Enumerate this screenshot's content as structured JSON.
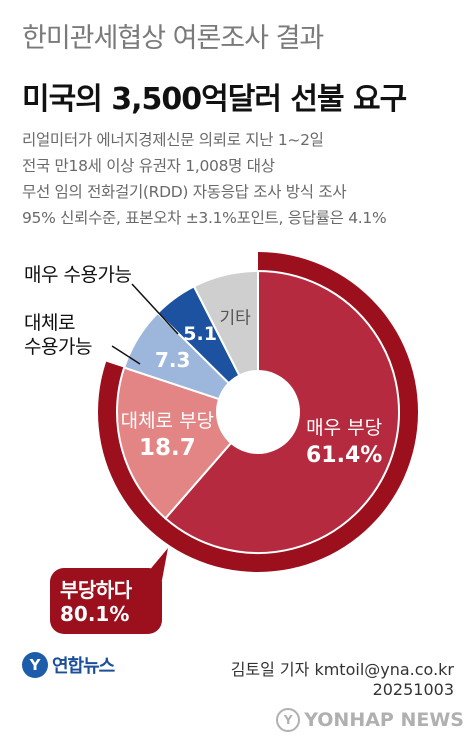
{
  "header": {
    "subtitle": "한미관세협상 여론조사 결과",
    "title": "미국의 3,500억달러 선불 요구"
  },
  "survey_info": [
    "리얼미터가 에너지경제신문 의뢰로 지난 1~2일",
    "전국 만18세 이상 유권자 1,008명 대상",
    "무선 임의 전화걸기(RDD) 자동응답 조사 방식 조사",
    "95% 신뢰수준, 표본오차 ±3.1%포인트, 응답률은 4.1%"
  ],
  "chart_data": {
    "type": "pie",
    "title": "",
    "donut": true,
    "start": "12 o'clock, clockwise",
    "slices": [
      {
        "label": "매우 부당",
        "value": 61.4,
        "display": "61.4%",
        "color": "#b52a3e"
      },
      {
        "label": "대체로 부당",
        "value": 18.7,
        "display": "18.7",
        "color": "#e48585"
      },
      {
        "label": "대체로 수용가능",
        "value": 7.3,
        "display": "7.3",
        "color": "#9db6dc"
      },
      {
        "label": "매우 수용가능",
        "value": 5.1,
        "display": "5.1",
        "color": "#1c52a0"
      },
      {
        "label": "기타",
        "value": 7.5,
        "display": "",
        "color": "#cfcfcf"
      }
    ],
    "group_total": {
      "label": "부당하다",
      "value": 80.1,
      "display": "80.1%",
      "color": "#9c0f1d"
    }
  },
  "labels": {
    "callout_very_acceptable": "매우 수용가능",
    "callout_mostly_acceptable_1": "대체로",
    "callout_mostly_acceptable_2": "수용가능",
    "other": "기타"
  },
  "footer": {
    "logo_mark": "Y",
    "logo_text": "연합뉴스",
    "credit": "김토일 기자 kmtoil@yna.co.kr",
    "date": "20251003",
    "watermark": "YONHAP NEWS"
  }
}
